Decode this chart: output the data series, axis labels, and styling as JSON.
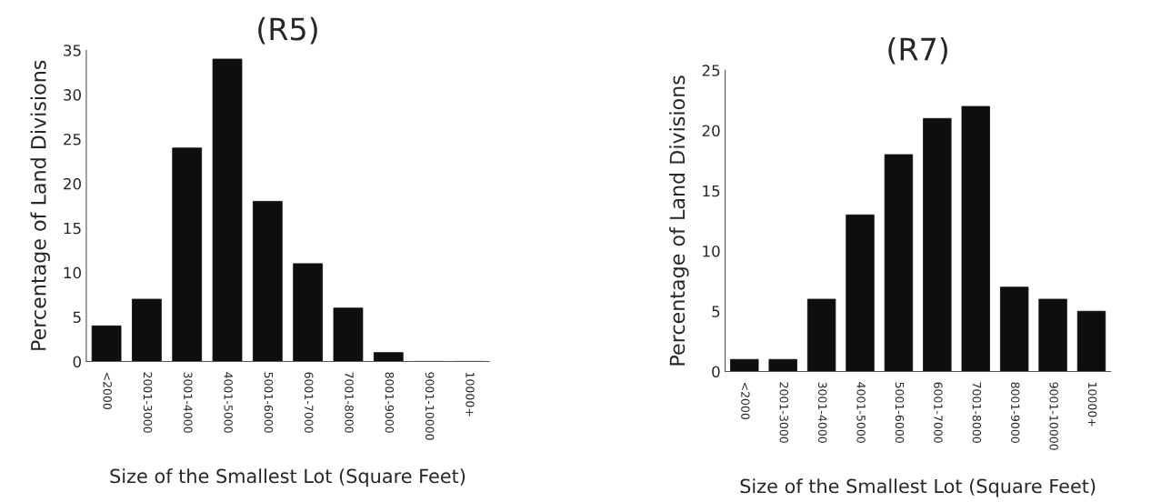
{
  "chart_data": [
    {
      "type": "bar",
      "title": "(R5)",
      "xlabel": "Size of the Smallest Lot (Square Feet)",
      "ylabel": "Percentage of Land Divisions",
      "categories": [
        "<2000",
        "2001-3000",
        "3001-4000",
        "4001-5000",
        "5001-6000",
        "6001-7000",
        "7001-8000",
        "8001-9000",
        "9001-10000",
        "10000+"
      ],
      "values": [
        4,
        7,
        24,
        34,
        18,
        11,
        6,
        1,
        0,
        0
      ],
      "color": "#0d0e0d",
      "ylim": [
        0,
        35
      ],
      "yticks": [
        0,
        5,
        10,
        15,
        20,
        25,
        30,
        35
      ],
      "grid": false,
      "legend": false
    },
    {
      "type": "bar",
      "title": "(R7)",
      "xlabel": "Size of the Smallest Lot (Square Feet)",
      "ylabel": "Percentage of Land Divisions",
      "categories": [
        "<2000",
        "2001-3000",
        "3001-4000",
        "4001-5000",
        "5001-6000",
        "6001-7000",
        "7001-8000",
        "8001-9000",
        "9001-10000",
        "10000+"
      ],
      "values": [
        1,
        1,
        6,
        13,
        18,
        21,
        22,
        7,
        6,
        5
      ],
      "color": "#0d0e0d",
      "ylim": [
        0,
        25
      ],
      "yticks": [
        0,
        5,
        10,
        15,
        20,
        25
      ],
      "grid": false,
      "legend": false
    }
  ]
}
